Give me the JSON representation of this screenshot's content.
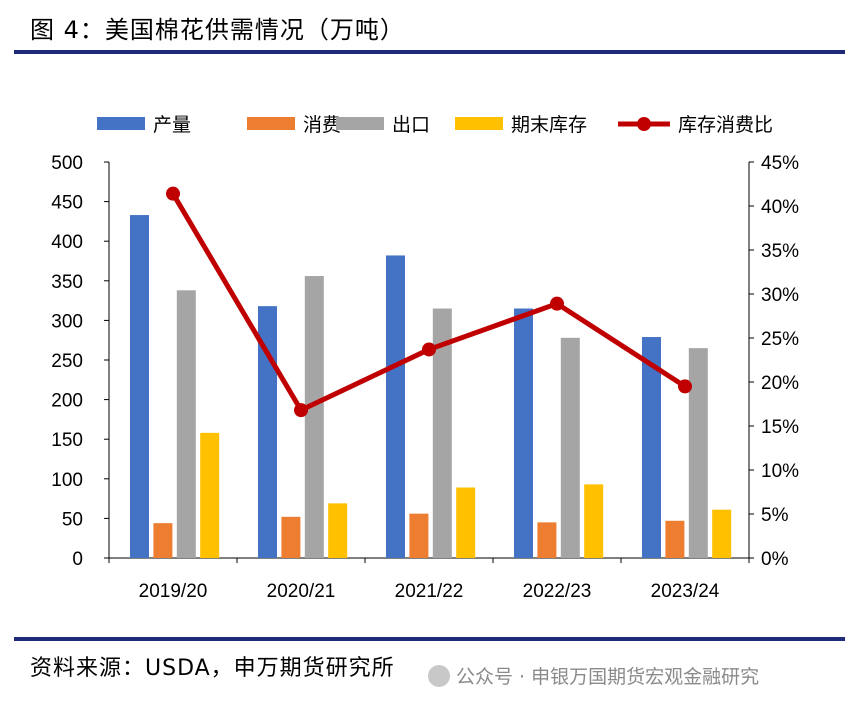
{
  "header": {
    "title": "图 4：美国棉花供需情况（万吨）"
  },
  "footer": {
    "source": "资料来源：USDA，申万期货研究所",
    "watermark": "公众号 · 申银万国期货宏观金融研究"
  },
  "colors": {
    "rule": "#1f2a78",
    "production": "#4472c4",
    "consumption": "#ed7d31",
    "exports": "#a5a5a5",
    "ending_stocks": "#ffc000",
    "ratio": "#c00000"
  },
  "chart_data": {
    "type": "bar",
    "categories": [
      "2019/20",
      "2020/21",
      "2021/22",
      "2022/23",
      "2023/24"
    ],
    "series": [
      {
        "name": "产量",
        "values": [
          433,
          318,
          382,
          315,
          279
        ]
      },
      {
        "name": "消费",
        "values": [
          44,
          52,
          56,
          45,
          47
        ]
      },
      {
        "name": "出口",
        "values": [
          338,
          356,
          315,
          278,
          265
        ]
      },
      {
        "name": "期末库存",
        "values": [
          158,
          69,
          89,
          93,
          61
        ]
      }
    ],
    "line_series": {
      "name": "库存消费比",
      "axis": "right",
      "values": [
        41.4,
        16.8,
        23.7,
        28.9,
        19.5
      ]
    },
    "ylim": [
      0,
      500
    ],
    "yticks": [
      "0",
      "50",
      "100",
      "150",
      "200",
      "250",
      "300",
      "350",
      "400",
      "450",
      "500"
    ],
    "y2lim": [
      0,
      45
    ],
    "y2ticks": [
      "0%",
      "5%",
      "10%",
      "15%",
      "20%",
      "25%",
      "30%",
      "35%",
      "40%",
      "45%"
    ],
    "legend": [
      "产量",
      "消费",
      "出口",
      "期末库存",
      "库存消费比"
    ],
    "legend_position": "top",
    "grid": false
  }
}
